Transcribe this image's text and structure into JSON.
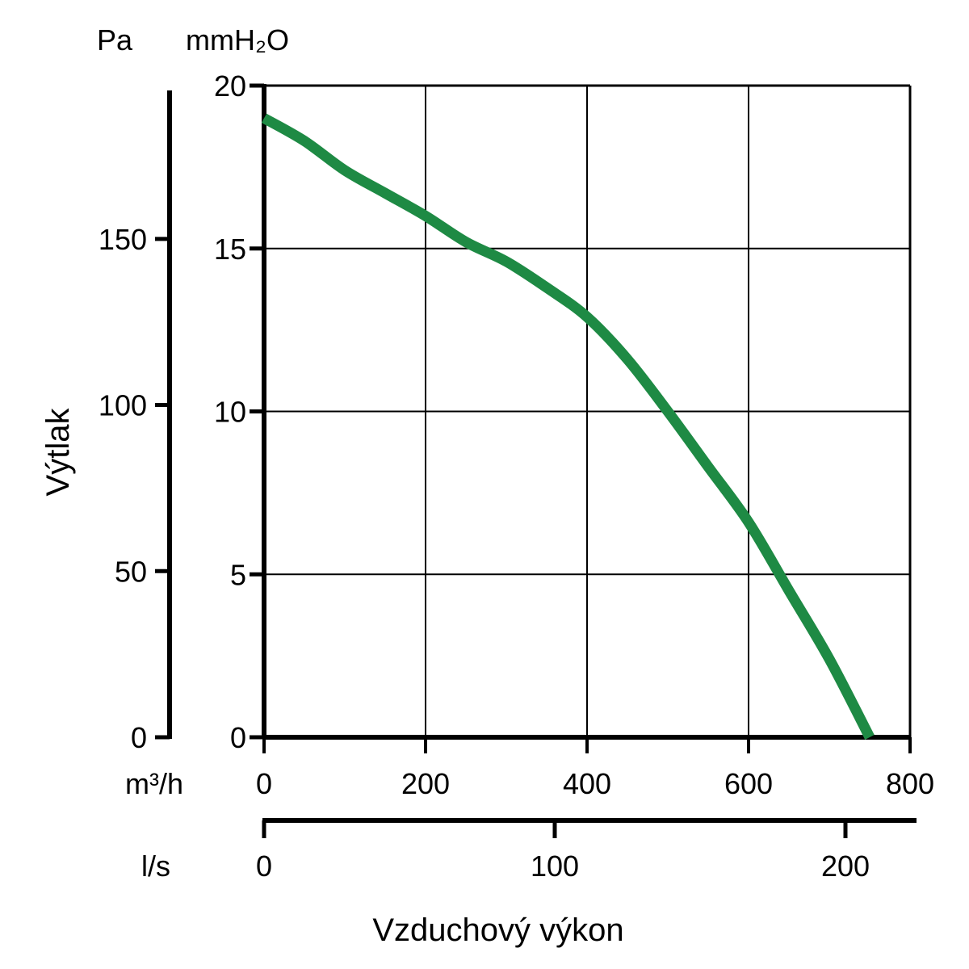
{
  "chart_data": {
    "type": "line",
    "xlabel": "Vzduchový výkon",
    "ylabel": "Výtlak",
    "x_unit": "m³/h",
    "y_unit": "mmH₂O",
    "xlim": [
      0,
      800
    ],
    "ylim": [
      0,
      20
    ],
    "x_ticks": [
      "0",
      "200",
      "400",
      "600",
      "800"
    ],
    "y_ticks": [
      "0",
      "5",
      "10",
      "15",
      "20"
    ],
    "grid": true,
    "secondary_x_axis": {
      "unit": "l/s",
      "ticks": [
        "0",
        "100",
        "200"
      ],
      "tick_values": [
        0,
        100,
        200
      ]
    },
    "secondary_y_axis": {
      "unit": "Pa",
      "ticks": [
        "0",
        "50",
        "100",
        "150"
      ],
      "tick_values": [
        0,
        50,
        100,
        150
      ]
    },
    "series": [
      {
        "color": "#1e8a44",
        "x": [
          0,
          50,
          100,
          150,
          200,
          250,
          300,
          350,
          400,
          450,
          500,
          550,
          600,
          650,
          700,
          750
        ],
        "y": [
          19.0,
          18.3,
          17.4,
          16.7,
          16.0,
          15.2,
          14.6,
          13.8,
          12.9,
          11.6,
          10.0,
          8.3,
          6.6,
          4.5,
          2.4,
          0.0
        ]
      }
    ]
  }
}
